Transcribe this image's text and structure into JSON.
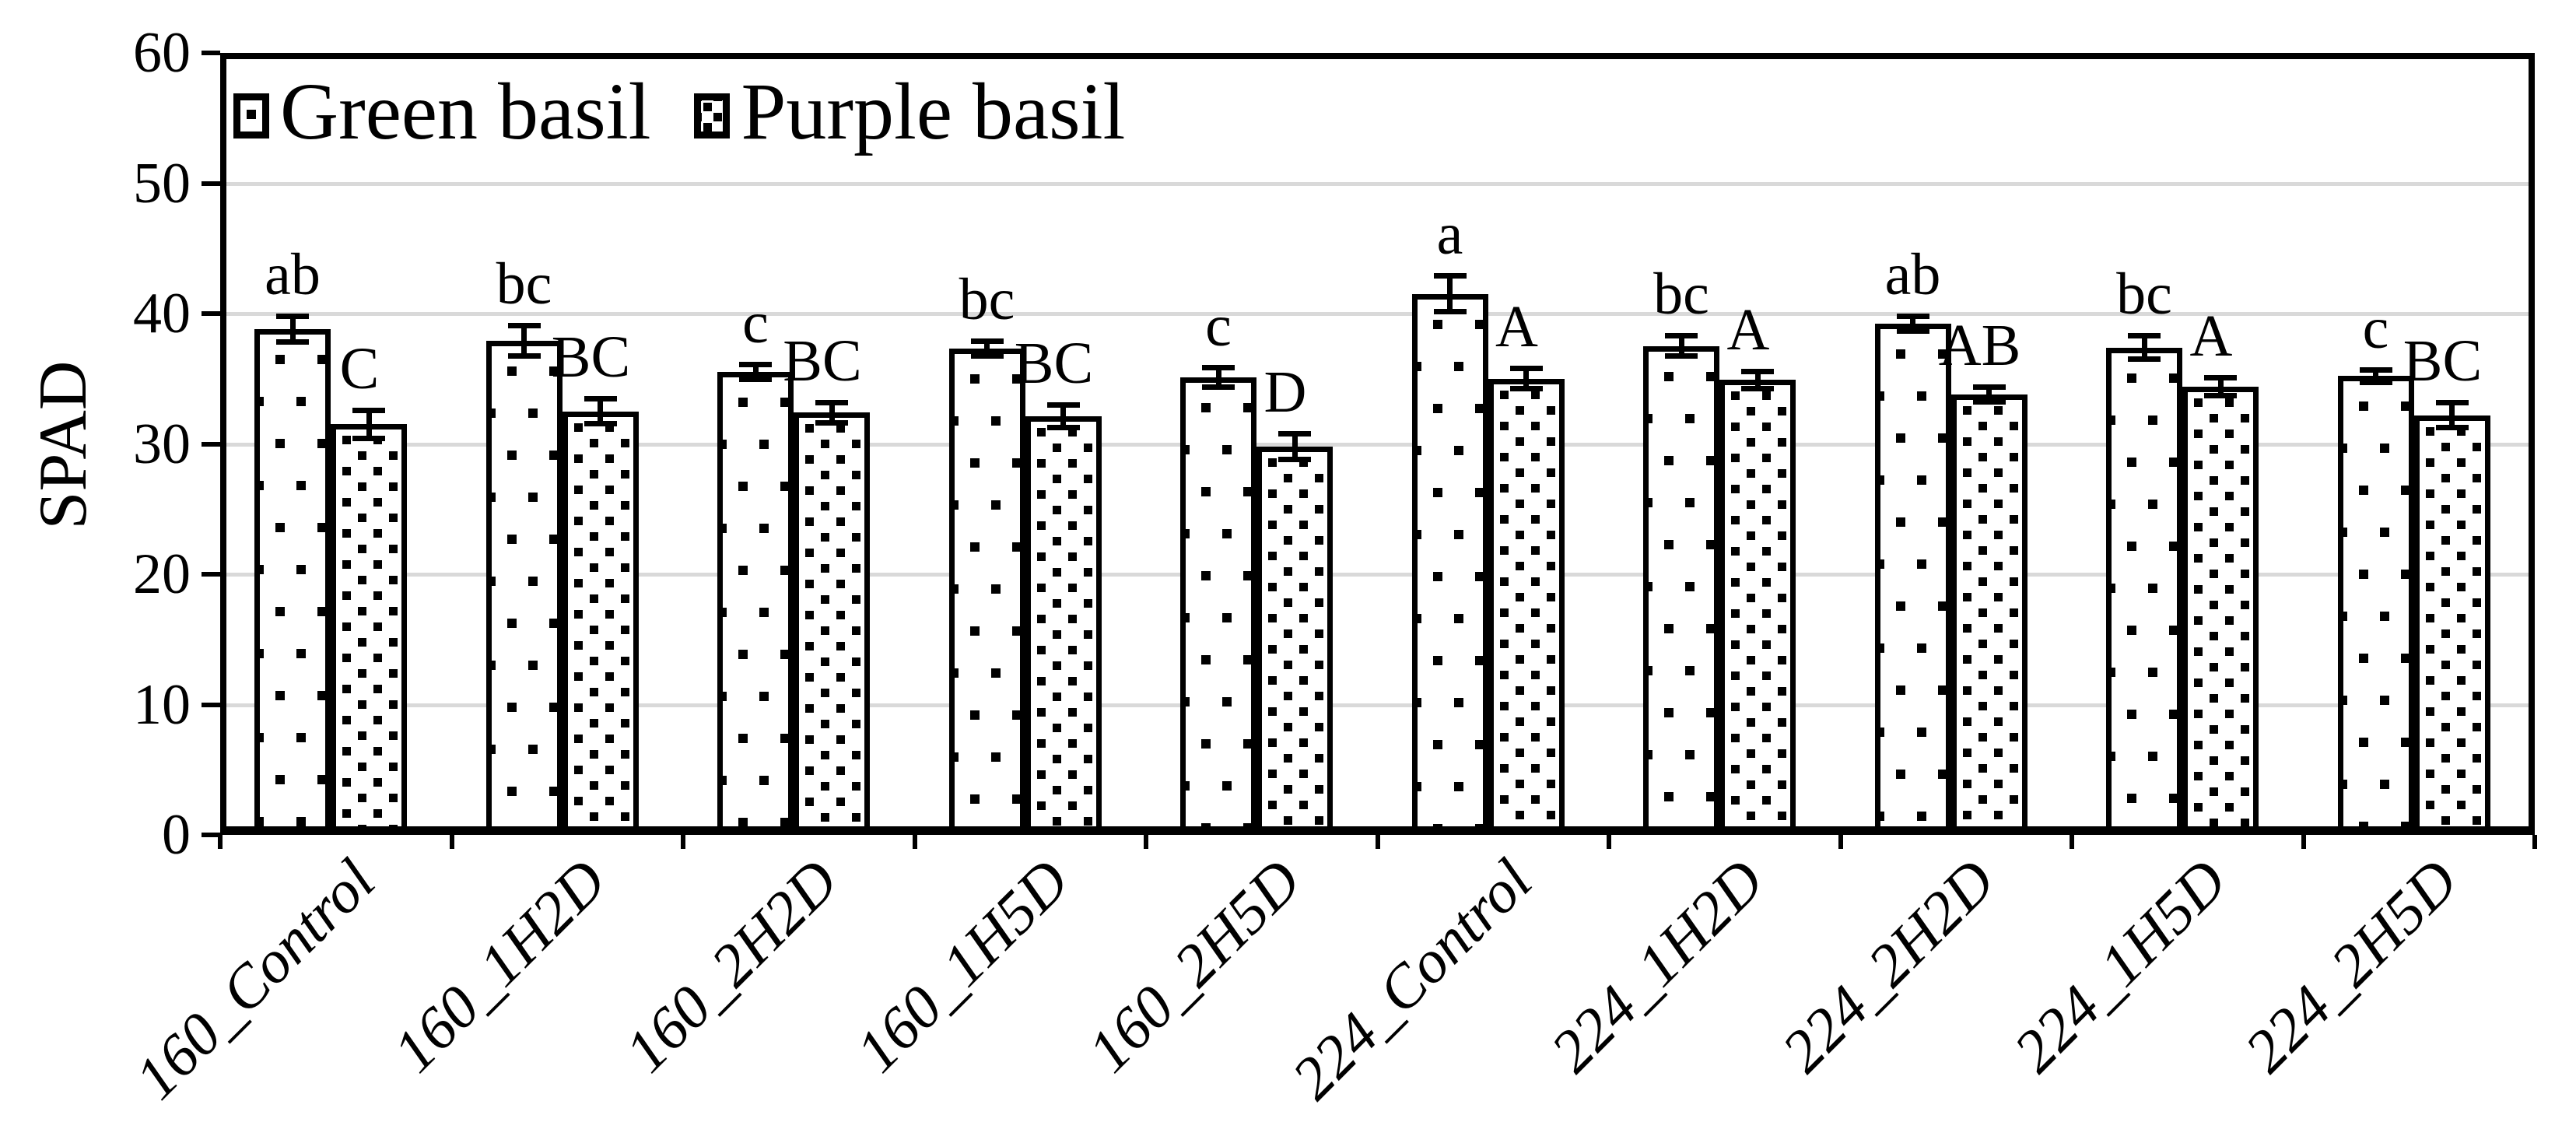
{
  "figure": {
    "background": "#ffffff",
    "ink_color": "#000000",
    "gridline_color": "#d9d9d9"
  },
  "chart_data": {
    "type": "bar",
    "title": "",
    "xlabel": "",
    "ylabel": "SPAD",
    "ylim": [
      0,
      60
    ],
    "yticks": [
      "0",
      "10",
      "20",
      "30",
      "40",
      "50",
      "60"
    ],
    "grid": "horizontal gridlines every 10, light gray",
    "legend_position": "top-left inside plot area, horizontal",
    "categories": [
      "160_Control",
      "160_1H2D",
      "160_2H2D",
      "160_1H5D",
      "160_2H5D",
      "224_Control",
      "224_1H2D",
      "224_2H2D",
      "224_1H5D",
      "224_2H5D"
    ],
    "series": [
      {
        "name": "Green basil",
        "pattern": "sparse-black-dots-on-white",
        "values": [
          38.8,
          37.9,
          35.5,
          37.3,
          35.1,
          41.5,
          37.5,
          39.2,
          37.4,
          35.2
        ],
        "errors": [
          1.0,
          1.2,
          0.6,
          0.6,
          0.8,
          1.4,
          0.8,
          0.6,
          0.9,
          0.5
        ],
        "sig_letters": [
          "ab",
          "bc",
          "c",
          "bc",
          "c",
          "a",
          "bc",
          "ab",
          "bc",
          "c"
        ]
      },
      {
        "name": "Purple basil",
        "pattern": "dense-black-dots-on-white",
        "values": [
          31.5,
          32.5,
          32.4,
          32.1,
          29.8,
          35.0,
          34.9,
          33.8,
          34.4,
          32.2
        ],
        "errors": [
          1.1,
          1.0,
          0.8,
          0.9,
          1.0,
          0.8,
          0.7,
          0.6,
          0.7,
          1.0
        ],
        "sig_letters": [
          "C",
          "BC",
          "BC",
          "BC",
          "D",
          "A",
          "A",
          "AB",
          "A",
          "BC"
        ]
      }
    ]
  }
}
